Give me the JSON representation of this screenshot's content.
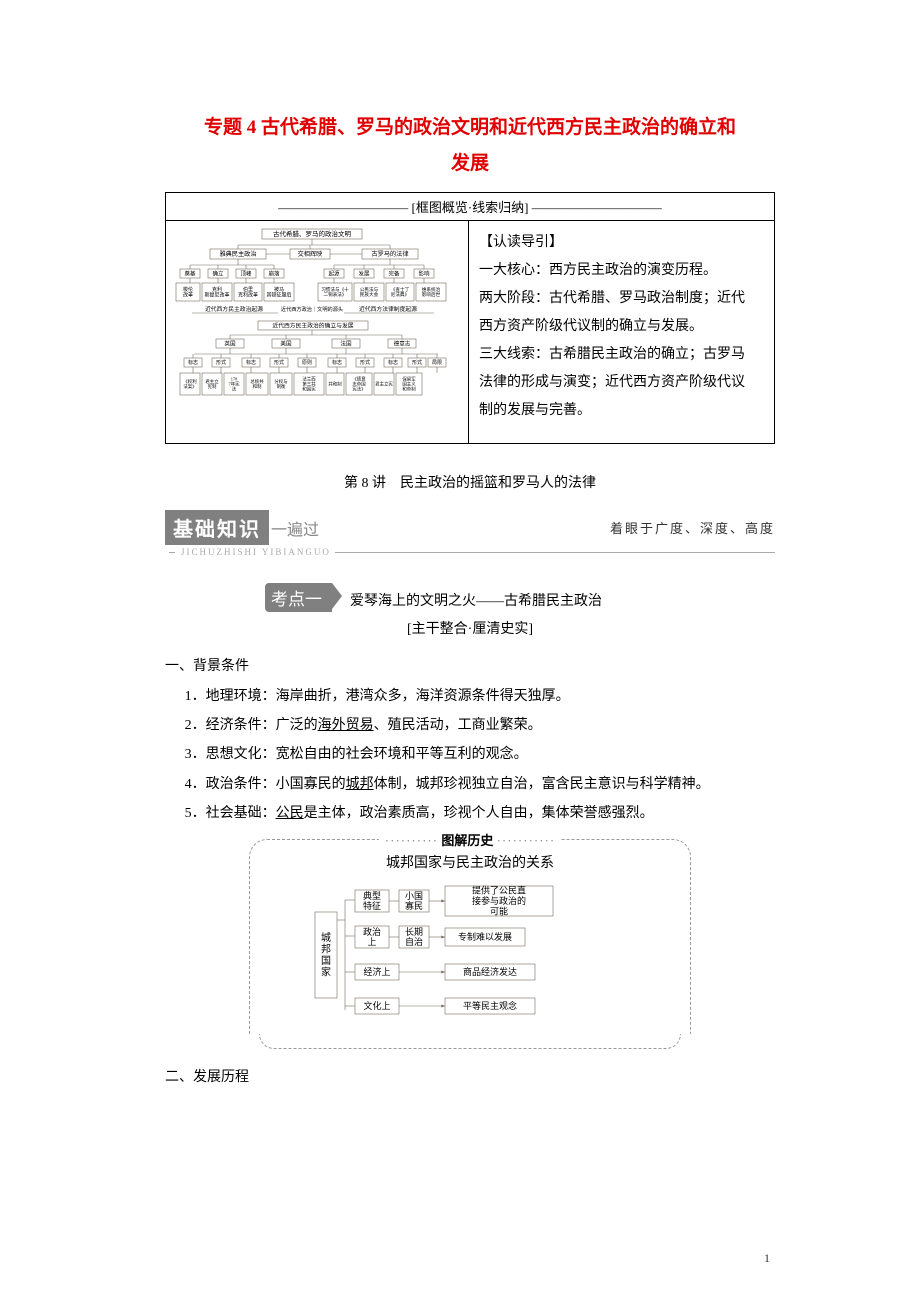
{
  "title_line1": "专题 4 古代希腊、罗马的政治文明和近代西方民主政治的确立和",
  "title_line2": "发展",
  "frame_header": "—————————— [框图概览·线索归纳] ——————————",
  "guide": {
    "head": "【认读导引】",
    "core": "一大核心：西方民主政治的演变历程。",
    "stage1": "两大阶段：古代希腊、罗马政治制度；近代",
    "stage2": "西方资产阶级代议制的确立与发展。",
    "line1": "三大线索：古希腊民主政治的确立；古罗马",
    "line2": "法律的形成与演变；近代西方资产阶级代议",
    "line3": "制的发展与完善。"
  },
  "lecture": "第 8 讲　民主政治的摇篮和罗马人的法律",
  "banner": {
    "badge": "基础知识",
    "sub": "一遍过",
    "pinyin": "JICHUZHISHI YIBIANGUO",
    "tag": "着眼于广度、深度、高度"
  },
  "kaodian": {
    "badge": "考点一",
    "text": "爱琴海上的文明之火——古希腊民主政治"
  },
  "subcenter": "[主干整合·厘清史实]",
  "sec1_head": "一、背景条件",
  "sec1_items": [
    {
      "pre": "1．地理环境：海岸曲折，港湾众多，海洋资源条件得天独厚。"
    },
    {
      "pre": "2．经济条件：广泛的",
      "u": "海外贸易",
      "post": "、殖民活动，工商业繁荣。"
    },
    {
      "pre": "3．思想文化：宽松自由的社会环境和平等互利的观念。"
    },
    {
      "pre": "4．政治条件：小国寡民的",
      "u": "城邦",
      "post": "体制，城邦珍视独立自治，富含民主意识与科学精神。"
    },
    {
      "pre": "5．社会基础：",
      "u": "公民",
      "post": "是主体，政治素质高，珍视个人自由，集体荣誉感强烈。"
    }
  ],
  "callout_label": "图解历史",
  "callout_title": "城邦国家与民主政治的关系",
  "sec2_head": "二、发展历程",
  "page_num": "1",
  "colors": {
    "title": "#e00000",
    "badge_bg": "#808080",
    "gray_text": "#888888",
    "border": "#000000",
    "diagram_stroke": "#756a5a",
    "diagram_fill": "#ffffff"
  },
  "tree1": {
    "root": "古代希腊、罗马的政治文明",
    "l2": [
      "雅典民主政治",
      "交相辉映",
      "古罗马的法律"
    ],
    "l3a": [
      "奠基",
      "确立",
      "顶峰",
      "崩落"
    ],
    "l3b": [
      "起源",
      "发展",
      "完备",
      "影响"
    ],
    "l4a": [
      "梭伦改革",
      "克利斯提尼改革",
      "伯里克利改革",
      "被马其顿征服后"
    ],
    "l4b": [
      "习惯法与《十二铜表法》",
      "公民法与民族大会",
      "《查士丁尼法典》",
      "维系统治影响后世"
    ],
    "mid1": "近代西方民主政治起源",
    "mid_c": "近代西方政治｜文明的源头",
    "mid2": "近代西方法律制度起源",
    "sub": "近代西方民主政治的确立与发展",
    "cty": [
      "英国",
      "美国",
      "法国",
      "德意志"
    ],
    "row_lbl": [
      "标志",
      "形式",
      "标志",
      "形式",
      "原则",
      "标志",
      "形式",
      "标志",
      "形式",
      "局限"
    ],
    "last": [
      "《权利法案》",
      "君主立宪制",
      "1787年宪法",
      "总统共和制",
      "分权与制衡",
      "法兰西第三共和国宪法",
      "共和制",
      "《德意志帝国宪法》",
      "君主立宪",
      "保留军国主义和帝制"
    ]
  },
  "dia2": {
    "root": "城邦国家",
    "rows": [
      {
        "a": "典型特征",
        "b": "小国寡民",
        "c": "提供了公民直接参与政治的可能"
      },
      {
        "a": "政治上",
        "b": "长期自治",
        "c": "专制难以发展"
      },
      {
        "a": "经济上",
        "b": "",
        "c": "商品经济发达"
      },
      {
        "a": "文化上",
        "b": "",
        "c": "平等民主观念"
      }
    ]
  }
}
